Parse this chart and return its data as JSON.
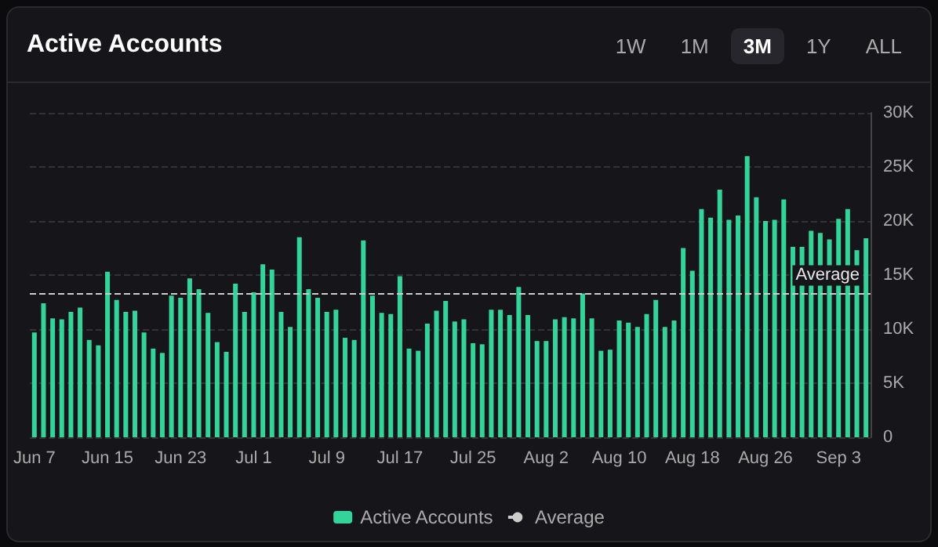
{
  "chart_data": {
    "type": "bar",
    "title": "Active Accounts",
    "annotations": [
      "1W",
      "1M",
      "3M",
      "1Y",
      "ALL"
    ],
    "categories": [
      "Jun 7",
      null,
      null,
      null,
      null,
      null,
      null,
      null,
      "Jun 15",
      null,
      null,
      null,
      null,
      null,
      null,
      null,
      "Jun 23",
      null,
      null,
      null,
      null,
      null,
      null,
      null,
      "Jul 1",
      null,
      null,
      null,
      null,
      null,
      null,
      null,
      "Jul 9",
      null,
      null,
      null,
      null,
      null,
      null,
      null,
      "Jul 17",
      null,
      null,
      null,
      null,
      null,
      null,
      null,
      "Jul 25",
      null,
      null,
      null,
      null,
      null,
      null,
      null,
      "Aug 2",
      null,
      null,
      null,
      null,
      null,
      null,
      null,
      "Aug 10",
      null,
      null,
      null,
      null,
      null,
      null,
      null,
      "Aug 18",
      null,
      null,
      null,
      null,
      null,
      null,
      null,
      "Aug 26",
      null,
      null,
      null,
      null,
      null,
      null,
      null,
      "Sep 3",
      null,
      null,
      null
    ],
    "series": [
      {
        "name": "Active Accounts",
        "color": "#34d399",
        "values": [
          9.7,
          12.4,
          11.0,
          10.9,
          11.6,
          12.0,
          9.0,
          8.5,
          15.3,
          12.7,
          11.6,
          11.7,
          9.7,
          8.2,
          7.8,
          13.1,
          12.9,
          14.7,
          13.7,
          11.5,
          8.8,
          7.9,
          14.2,
          11.6,
          13.4,
          16.0,
          15.5,
          11.6,
          10.2,
          18.5,
          13.7,
          12.9,
          11.6,
          11.8,
          9.2,
          9.0,
          18.2,
          13.1,
          11.5,
          11.4,
          14.9,
          8.2,
          8.0,
          10.5,
          11.7,
          12.6,
          10.7,
          10.9,
          8.7,
          8.6,
          11.8,
          11.8,
          11.3,
          13.9,
          11.3,
          8.9,
          8.9,
          10.9,
          11.1,
          11.0,
          13.3,
          11.0,
          8.0,
          8.1,
          10.8,
          10.6,
          10.2,
          11.4,
          12.7,
          10.2,
          10.8,
          17.5,
          15.4,
          21.1,
          20.3,
          22.9,
          20.1,
          20.5,
          26.0,
          22.2,
          20.0,
          20.1,
          22.0,
          17.6,
          17.6,
          19.1,
          18.9,
          18.3,
          20.2,
          21.1,
          17.3,
          18.4
        ]
      }
    ],
    "ylim": [
      0,
      30
    ],
    "yticks": [
      {
        "value": 0,
        "label": "0"
      },
      {
        "value": 5,
        "label": "5K"
      },
      {
        "value": 10,
        "label": "10K"
      },
      {
        "value": 15,
        "label": "15K"
      },
      {
        "value": 20,
        "label": "20K"
      },
      {
        "value": 25,
        "label": "25K"
      },
      {
        "value": 30,
        "label": "30K"
      }
    ],
    "ref_lines": [
      {
        "axis": "y",
        "value": 13.3,
        "label": "Average",
        "color": "#cccccc",
        "line_style": "dashed"
      }
    ],
    "grid": "y",
    "legend": "bottom"
  }
}
